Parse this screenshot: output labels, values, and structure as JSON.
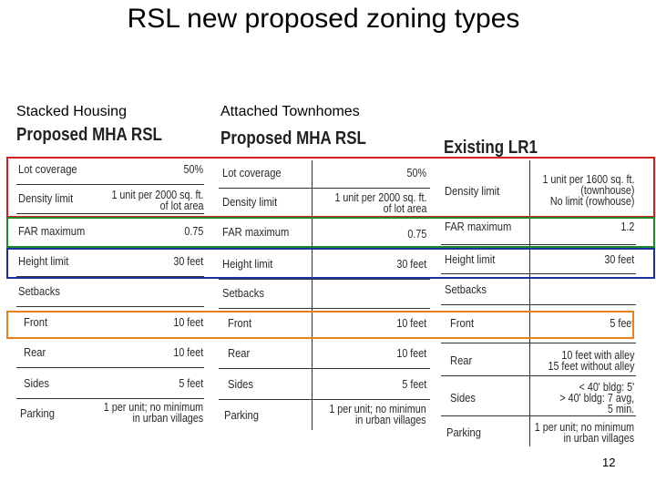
{
  "title": "RSL new proposed zoning types",
  "column_labels": {
    "stacked": "Stacked Housing",
    "attached": "Attached Townhomes"
  },
  "tables": {
    "stacked": {
      "heading": "Proposed MHA RSL",
      "rows": [
        {
          "label": "Lot coverage",
          "value": [
            "50%"
          ]
        },
        {
          "label": "Density limit",
          "value": [
            "1 unit per 2000 sq. ft.",
            "of lot area"
          ]
        },
        {
          "label": "FAR maximum",
          "value": [
            "0.75"
          ]
        },
        {
          "label": "Height limit",
          "value": [
            "30 feet"
          ]
        },
        {
          "label": "Setbacks",
          "value": []
        },
        {
          "label": "Front",
          "value": [
            "10 feet"
          ]
        },
        {
          "label": "Rear",
          "value": [
            "10 feet"
          ]
        },
        {
          "label": "Sides",
          "value": [
            "5 feet"
          ]
        },
        {
          "label": "Parking",
          "value": [
            "1 per unit; no minimum",
            "in urban villages"
          ]
        }
      ]
    },
    "attached": {
      "heading": "Proposed MHA RSL",
      "rows": [
        {
          "label": "Lot coverage",
          "value": [
            "50%"
          ]
        },
        {
          "label": "Density limit",
          "value": [
            "1 unit per 2000 sq. ft.",
            "of lot area"
          ]
        },
        {
          "label": "FAR maximum",
          "value": [
            "0.75"
          ]
        },
        {
          "label": "Height limit",
          "value": [
            "30 feet"
          ]
        },
        {
          "label": "Setbacks",
          "value": []
        },
        {
          "label": "Front",
          "value": [
            "10 feet"
          ]
        },
        {
          "label": "Rear",
          "value": [
            "10 feet"
          ]
        },
        {
          "label": "Sides",
          "value": [
            "5 feet"
          ]
        },
        {
          "label": "Parking",
          "value": [
            "1 per unit; no minimun",
            "in urban villages"
          ]
        }
      ]
    },
    "existing": {
      "heading": "Existing LR1",
      "rows": [
        {
          "label": "Density limit",
          "value": [
            "1 unit per 1600 sq. ft.",
            "(townhouse)",
            "No limit (rowhouse)"
          ]
        },
        {
          "label": "FAR maximum",
          "value": [
            "1.2"
          ]
        },
        {
          "label": "Height limit",
          "value": [
            "30 feet"
          ]
        },
        {
          "label": "Setbacks",
          "value": []
        },
        {
          "label": "Front",
          "value": [
            "5 feet"
          ]
        },
        {
          "label": "Rear",
          "value": [
            "10 feet with alley",
            "15 feet without alley"
          ]
        },
        {
          "label": "Sides",
          "value": [
            "< 40' bldg: 5'",
            "> 40' bldg: 7 avg,",
            "5 min."
          ]
        },
        {
          "label": "Parking",
          "value": [
            "1 per unit; no minimum",
            "in urban villages"
          ]
        }
      ]
    }
  },
  "highlight_colors": {
    "red": "#d42020",
    "green": "#1e8a2a",
    "blue": "#1a2fa0",
    "orange": "#e87e1c"
  },
  "page_number": "12"
}
